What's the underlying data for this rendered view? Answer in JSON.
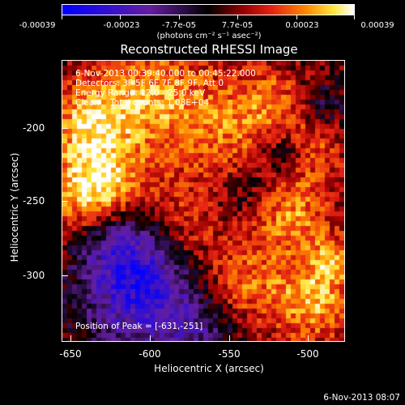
{
  "colorbar": {
    "tick_labels": [
      "-0.00039",
      "-0.00023",
      "-7.7e-05",
      "7.7e-05",
      "0.00023",
      "0.00039"
    ],
    "units": "(photons cm⁻² s⁻¹ asec⁻²)",
    "range": [
      -0.00039,
      0.00039
    ]
  },
  "title": "Reconstructed RHESSI Image",
  "info": {
    "time_range": "6-Nov-2013 00:39:40.000 to 00:45:22.000",
    "detectors": "Detectors: 3F 5F 6F 7F 8F 9F, Att 0",
    "energy": "Energy Range: 12.0 - 25.0 keV",
    "algorithm": "Clean    Total counts: 1.08E+04",
    "peak": "Position of Peak = [-631,-251]"
  },
  "axes": {
    "xlabel": "Heliocentric X (arcsec)",
    "ylabel": "Heliocentric Y (arcsec)",
    "xticks": [
      "-650",
      "-600",
      "-550",
      "-500"
    ],
    "yticks": [
      "-200",
      "-250",
      "-300"
    ]
  },
  "footer": "6-Nov-2013 08:07",
  "colors": {
    "low": "#0000ff",
    "mid_low": "#6a1a9a",
    "mid": "#000000",
    "mid_high": "#e8251a",
    "high": "#ffffff"
  }
}
